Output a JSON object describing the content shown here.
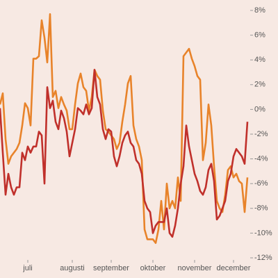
{
  "chart_data": {
    "type": "line",
    "categories": [
      null,
      null,
      null,
      null,
      null,
      null,
      null,
      null,
      null,
      null,
      "juli",
      null,
      null,
      null,
      null,
      null,
      null,
      null,
      null,
      null,
      null,
      null,
      null,
      null,
      null,
      null,
      "augusti",
      null,
      null,
      null,
      null,
      null,
      null,
      null,
      null,
      null,
      null,
      null,
      null,
      null,
      "september",
      null,
      null,
      null,
      null,
      null,
      null,
      null,
      null,
      null,
      null,
      null,
      null,
      null,
      null,
      "oktober",
      null,
      null,
      null,
      null,
      null,
      null,
      null,
      null,
      null,
      null,
      null,
      null,
      null,
      null,
      "november",
      null,
      null,
      null,
      null,
      null,
      null,
      null,
      null,
      null,
      null,
      null,
      null,
      null,
      "december",
      null,
      null,
      null,
      null,
      null
    ],
    "series": [
      {
        "color": "#e8832a",
        "values": [
          0.4,
          1.3,
          -2.4,
          -4.4,
          -3.8,
          -3.5,
          -3.2,
          -2.7,
          -1.3,
          0.5,
          0.1,
          -1.3,
          4.1,
          4.1,
          4.3,
          7.2,
          5.8,
          3.8,
          7.7,
          1.0,
          1.5,
          0.1,
          1.0,
          0.4,
          -0.1,
          -1.6,
          -1.6,
          0.4,
          2.1,
          2.9,
          1.8,
          1.5,
          -0.1,
          1.0,
          3.2,
          2.7,
          2.4,
          -0.1,
          -1.6,
          -1.8,
          -2.1,
          -2.4,
          -3.2,
          -2.7,
          -1.0,
          0.4,
          2.1,
          2.7,
          -1.3,
          -2.4,
          -3.0,
          -4.1,
          -9.7,
          -10.5,
          -10.5,
          -10.5,
          -10.8,
          -9.7,
          -7.4,
          -9.7,
          -6.0,
          -8.0,
          -7.4,
          -8.0,
          -5.5,
          -7.4,
          4.3,
          4.6,
          4.9,
          4.1,
          3.5,
          2.7,
          2.4,
          -4.1,
          -2.7,
          0.4,
          -1.3,
          -4.6,
          -7.4,
          -8.0,
          -8.3,
          -6.9,
          -4.9,
          -4.6,
          -5.5,
          -5.2,
          -5.8,
          -6.0,
          -8.3,
          -5.5
        ]
      },
      {
        "color": "#c0302b",
        "values": [
          0.1,
          -3.5,
          -6.9,
          -5.2,
          -6.3,
          -6.9,
          -6.3,
          -6.3,
          -3.5,
          -4.1,
          -3.0,
          -3.5,
          -3.0,
          -3.0,
          -1.8,
          -2.1,
          -6.0,
          1.8,
          0.1,
          0.7,
          -1.0,
          -1.6,
          -0.1,
          -0.7,
          -1.8,
          -3.8,
          -2.7,
          -1.6,
          0.1,
          -0.1,
          -0.4,
          0.4,
          -0.4,
          0.1,
          3.2,
          1.0,
          0.4,
          -1.6,
          -2.4,
          -1.6,
          -1.8,
          -3.8,
          -4.6,
          -3.8,
          -2.7,
          -2.1,
          -1.8,
          -2.7,
          -3.0,
          -4.1,
          -4.4,
          -5.2,
          -7.4,
          -8.0,
          -8.3,
          -10.0,
          -9.4,
          -9.1,
          -9.1,
          -9.1,
          -8.0,
          -10.0,
          -10.3,
          -9.4,
          -8.0,
          -6.0,
          -4.6,
          -1.3,
          -3.0,
          -4.1,
          -5.2,
          -5.8,
          -6.6,
          -6.9,
          -6.3,
          -4.9,
          -4.4,
          -5.8,
          -8.9,
          -8.6,
          -8.0,
          -7.4,
          -5.8,
          -5.2,
          -3.8,
          -3.2,
          -3.5,
          -3.8,
          -4.4,
          -1.0
        ]
      }
    ],
    "ylim": [
      -12,
      8
    ],
    "yticks": [
      {
        "value": 8,
        "label": "8%"
      },
      {
        "value": 6,
        "label": "6%"
      },
      {
        "value": 4,
        "label": "4%"
      },
      {
        "value": 2,
        "label": "2%"
      },
      {
        "value": 0,
        "label": "0%"
      },
      {
        "value": -2,
        "label": "-2%"
      },
      {
        "value": -4,
        "label": "-4%"
      },
      {
        "value": -6,
        "label": "-6%"
      },
      {
        "value": -8,
        "label": "-8%"
      },
      {
        "value": -10,
        "label": "-10%"
      },
      {
        "value": -12,
        "label": "-12%"
      }
    ],
    "grid": false
  }
}
